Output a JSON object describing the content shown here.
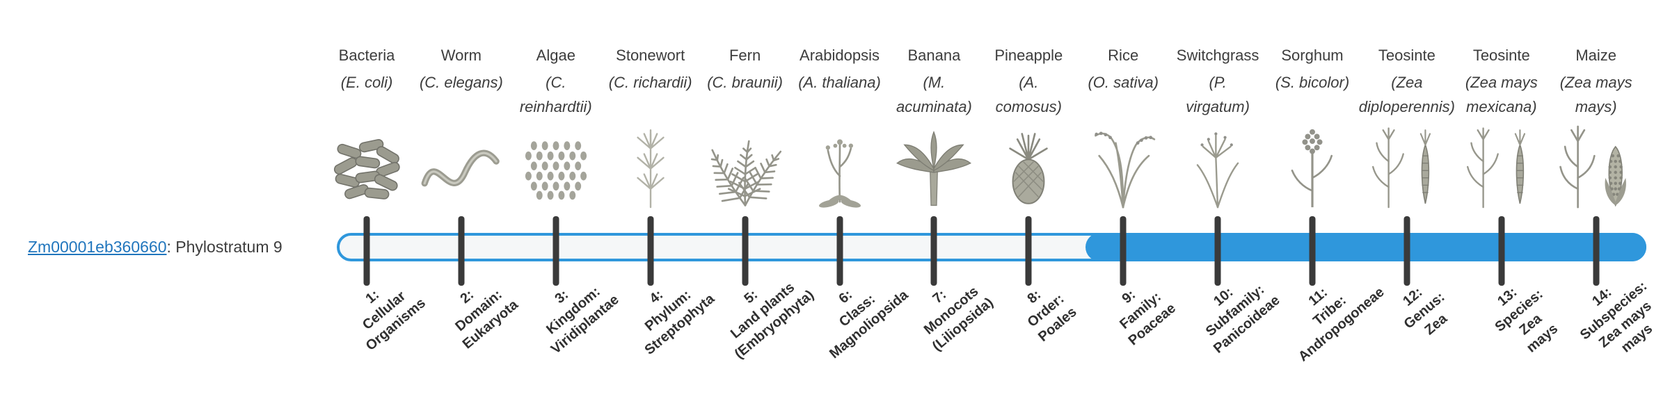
{
  "gene": {
    "id": "Zm00001eb360660",
    "suffix": ": Phylostratum 9",
    "phylostratum": 9
  },
  "colors": {
    "bar_blue": "#2f97dc",
    "bar_empty": "#f5f7f8",
    "tick": "#3a3a3a",
    "link_blue": "#2176bd",
    "text": "#3d3d3d"
  },
  "chart": {
    "type": "phylostratigraphy-bar",
    "num_strata": 14,
    "filled_from": 9,
    "strata": [
      {
        "index": 1,
        "common": "Bacteria",
        "species": "(E. coli)",
        "taxon": "1:\nCellular\nOrganisms",
        "icon": "bacteria-icon",
        "filled": false
      },
      {
        "index": 2,
        "common": "Worm",
        "species": "(C. elegans)",
        "taxon": "2:\nDomain:\nEukaryota",
        "icon": "worm-icon",
        "filled": false
      },
      {
        "index": 3,
        "common": "Algae",
        "species": "(C.\nreinhardtii)",
        "taxon": "3:\nKingdom:\nViridiplantae",
        "icon": "algae-icon",
        "filled": false
      },
      {
        "index": 4,
        "common": "Stonewort",
        "species": "(C. richardii)",
        "taxon": "4:\nPhylum:\nStreptophyta",
        "icon": "stonewort-icon",
        "filled": false
      },
      {
        "index": 5,
        "common": "Fern",
        "species": "(C. braunii)",
        "taxon": "5:\nLand plants\n(Embryophyta)",
        "icon": "fern-icon",
        "filled": false
      },
      {
        "index": 6,
        "common": "Arabidopsis",
        "species": "(A. thaliana)",
        "taxon": "6:\nClass:\nMagnoliopsida",
        "icon": "arabidopsis-icon",
        "filled": false
      },
      {
        "index": 7,
        "common": "Banana",
        "species": "(M.\nacuminata)",
        "taxon": "7:\nMonocots\n(Liliopsida)",
        "icon": "banana-icon",
        "filled": false
      },
      {
        "index": 8,
        "common": "Pineapple",
        "species": "(A.\ncomosus)",
        "taxon": "8:\nOrder:\nPoales",
        "icon": "pineapple-icon",
        "filled": false
      },
      {
        "index": 9,
        "common": "Rice",
        "species": "(O. sativa)",
        "taxon": "9:\nFamily:\nPoaceae",
        "icon": "rice-icon",
        "filled": true
      },
      {
        "index": 10,
        "common": "Switchgrass",
        "species": "(P.\nvirgatum)",
        "taxon": "10:\nSubfamily:\nPanicoideae",
        "icon": "switchgrass-icon",
        "filled": true
      },
      {
        "index": 11,
        "common": "Sorghum",
        "species": "(S. bicolor)",
        "taxon": "11:\nTribe:\nAndropogoneae",
        "icon": "sorghum-icon",
        "filled": true
      },
      {
        "index": 12,
        "common": "Teosinte",
        "species": "(Zea\ndiploperennis)",
        "taxon": "12:\nGenus:\nZea",
        "icon": "teosinte-icon",
        "filled": true
      },
      {
        "index": 13,
        "common": "Teosinte",
        "species": "(Zea mays\nmexicana)",
        "taxon": "13:\nSpecies:\nZea\nmays",
        "icon": "teosinte-icon",
        "filled": true
      },
      {
        "index": 14,
        "common": "Maize",
        "species": "(Zea mays\nmays)",
        "taxon": "14:\nSubspecies:\nZea mays\nmays",
        "icon": "maize-icon",
        "filled": true
      }
    ]
  }
}
